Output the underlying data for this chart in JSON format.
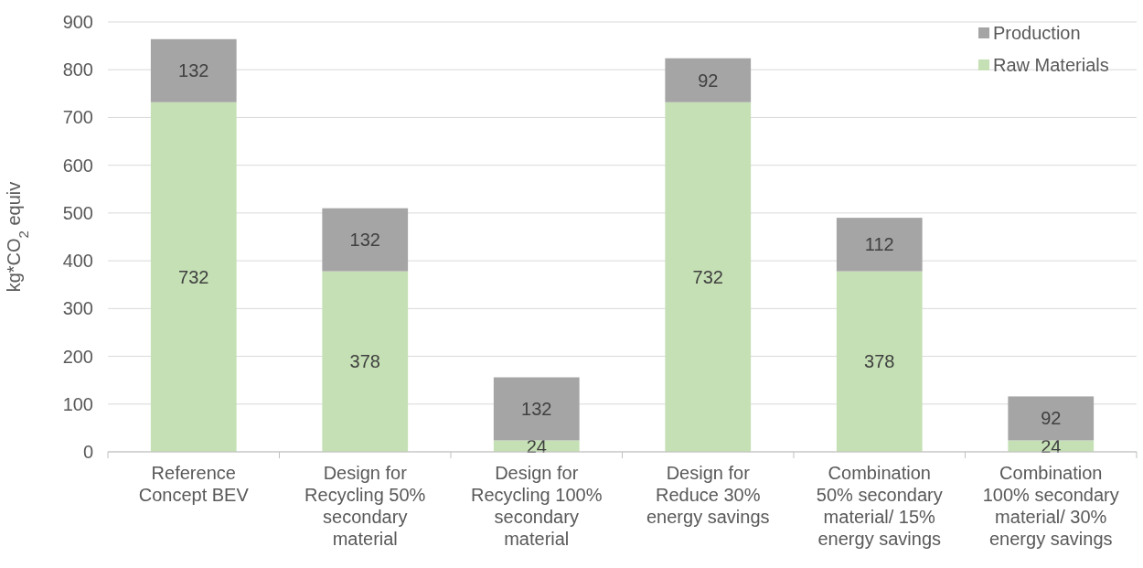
{
  "chart_data": {
    "type": "bar",
    "stacked": true,
    "ylabel": "kg*CO$_{2}$ equiv",
    "categories": [
      "Reference Concept BEV",
      "Design for Recycling 50% secondary material",
      "Design for Recycling 100% secondary material",
      "Design for Reduce 30% energy savings",
      "Combination 50% secondary material/ 15% energy savings",
      "Combination 100% secondary material/ 30% energy savings"
    ],
    "series": [
      {
        "name": "Raw Materials",
        "color": "#c5e0b4",
        "values": [
          732,
          378,
          24,
          732,
          378,
          24
        ]
      },
      {
        "name": "Production",
        "color": "#a5a5a5",
        "values": [
          132,
          132,
          132,
          92,
          112,
          92
        ]
      }
    ],
    "ylim": [
      0,
      900
    ],
    "yticks": [
      0,
      100,
      200,
      300,
      400,
      500,
      600,
      700,
      800,
      900
    ],
    "grid": "y",
    "legend": "top right",
    "data_labels": true
  }
}
